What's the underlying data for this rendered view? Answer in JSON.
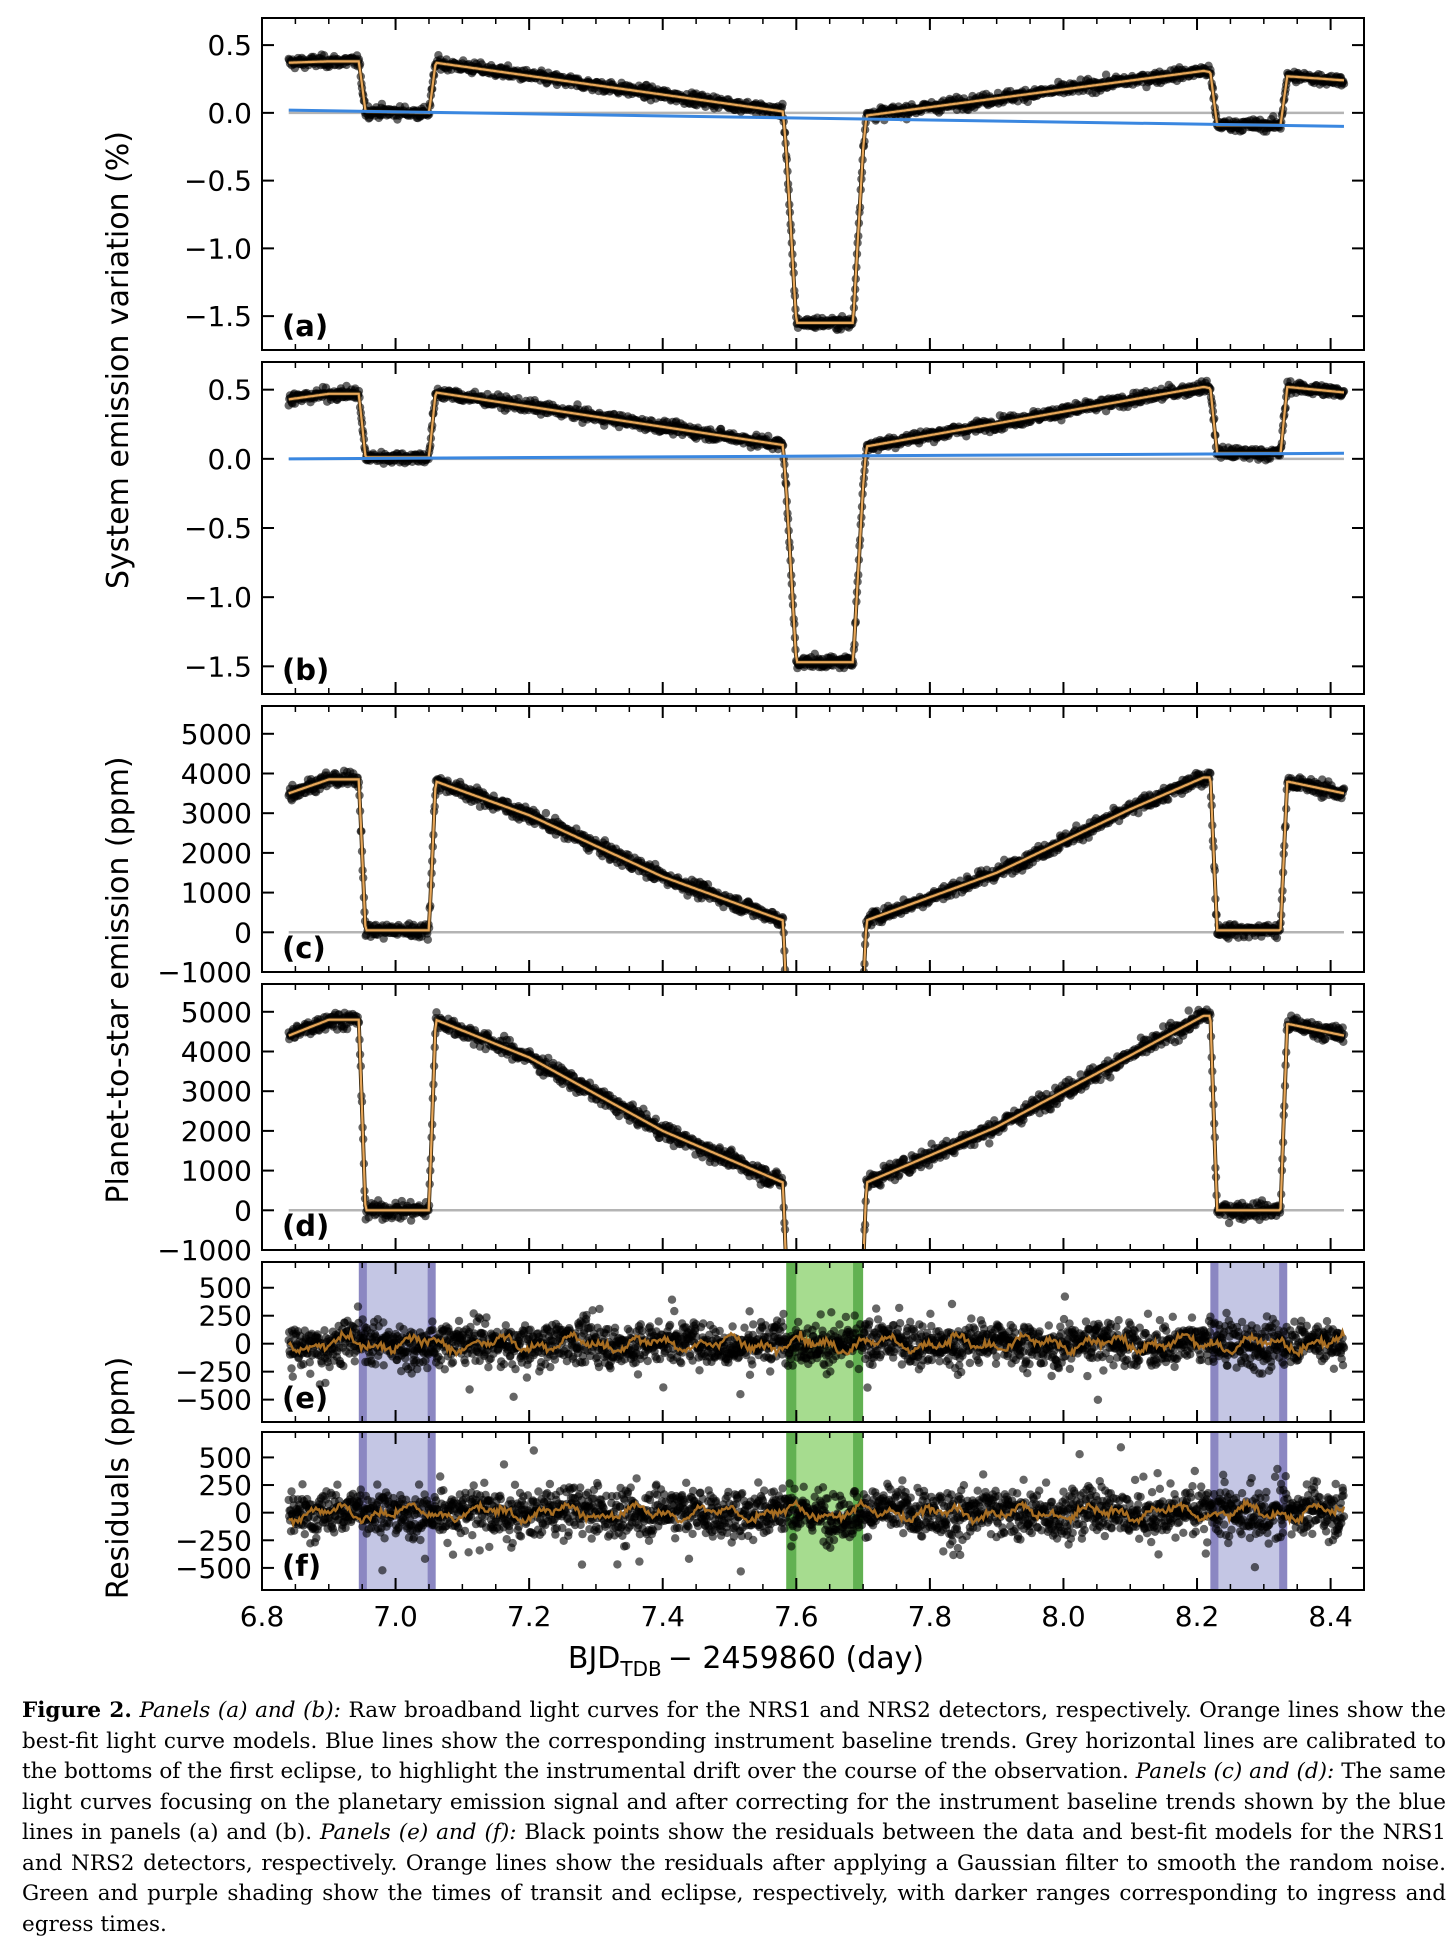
{
  "figure": {
    "xlabel_main": "BJD",
    "xlabel_sub": "TDB",
    "xlabel_rest": "− 2459860 (day)",
    "xlim": [
      6.8,
      8.45
    ],
    "xticks": [
      "6.8",
      "7.0",
      "7.2",
      "7.4",
      "7.6",
      "7.8",
      "8.0",
      "8.2",
      "8.4"
    ],
    "ylabel_top": "System emission variation (%)",
    "ylabel_mid": "Planet-to-star emission (ppm)",
    "ylabel_bottom": "Residuals (ppm)",
    "colors": {
      "data": "#000000",
      "model": "#e8a75a",
      "baseline": "#3a87e0",
      "grey_line": "#b4b4b4",
      "transit_shade": "#a6dc8f",
      "transit_edge": "#62b152",
      "eclipse_shade": "#c4c6e4",
      "eclipse_edge": "#8b87c2",
      "residual_smooth": "#a86e22"
    }
  },
  "chart_data": [
    {
      "type": "scatter",
      "panel_label": "(a)",
      "ylim": [
        -1.75,
        0.7
      ],
      "yticks": [
        "0.5",
        "0.0",
        "−0.5",
        "−1.0",
        "−1.5"
      ],
      "model_points": {
        "x": [
          6.84,
          6.9,
          6.945,
          6.955,
          7.05,
          7.06,
          7.58,
          7.585,
          7.6,
          7.685,
          7.7,
          7.705,
          8.21,
          8.22,
          8.23,
          8.325,
          8.335,
          8.42
        ],
        "y": [
          0.37,
          0.38,
          0.38,
          0.01,
          0.0,
          0.37,
          0.01,
          -0.28,
          -1.55,
          -1.55,
          -0.27,
          -0.02,
          0.31,
          0.3,
          -0.09,
          -0.09,
          0.27,
          0.24
        ]
      },
      "baseline": {
        "x": [
          6.84,
          8.42
        ],
        "y": [
          0.02,
          -0.1
        ]
      },
      "reference_line": 0.0,
      "scatter_noise": 0.03
    },
    {
      "type": "scatter",
      "panel_label": "(b)",
      "ylim": [
        -1.7,
        0.7
      ],
      "yticks": [
        "0.5",
        "0.0",
        "−0.5",
        "−1.0",
        "−1.5"
      ],
      "model_points": {
        "x": [
          6.84,
          6.9,
          6.945,
          6.955,
          7.05,
          7.06,
          7.58,
          7.585,
          7.6,
          7.685,
          7.7,
          7.705,
          8.21,
          8.22,
          8.23,
          8.325,
          8.335,
          8.42
        ],
        "y": [
          0.43,
          0.47,
          0.47,
          0.01,
          0.01,
          0.48,
          0.1,
          -0.22,
          -1.47,
          -1.47,
          -0.2,
          0.09,
          0.52,
          0.51,
          0.04,
          0.04,
          0.52,
          0.48
        ]
      },
      "baseline": {
        "x": [
          6.84,
          8.42
        ],
        "y": [
          0.0,
          0.04
        ]
      },
      "reference_line": 0.0,
      "scatter_noise": 0.03
    },
    {
      "type": "scatter",
      "panel_label": "(c)",
      "ylim": [
        -1000,
        5700
      ],
      "yticks": [
        "5000",
        "4000",
        "3000",
        "2000",
        "1000",
        "0",
        "−1000"
      ],
      "model_points": {
        "x": [
          6.84,
          6.9,
          6.945,
          6.955,
          7.05,
          7.06,
          7.2,
          7.4,
          7.58,
          7.585,
          7.7,
          7.705,
          7.9,
          8.1,
          8.21,
          8.22,
          8.23,
          8.325,
          8.335,
          8.42
        ],
        "y": [
          3500,
          3850,
          3850,
          50,
          50,
          3800,
          2950,
          1400,
          300,
          -1500,
          -1500,
          300,
          1500,
          3100,
          3900,
          3900,
          50,
          50,
          3800,
          3500
        ]
      },
      "reference_line": 0,
      "scatter_noise": 130
    },
    {
      "type": "scatter",
      "panel_label": "(d)",
      "ylim": [
        -1000,
        5700
      ],
      "yticks": [
        "5000",
        "4000",
        "3000",
        "2000",
        "1000",
        "0",
        "−1000"
      ],
      "model_points": {
        "x": [
          6.84,
          6.9,
          6.945,
          6.955,
          7.05,
          7.06,
          7.2,
          7.4,
          7.58,
          7.585,
          7.7,
          7.705,
          7.9,
          8.1,
          8.21,
          8.22,
          8.23,
          8.325,
          8.335,
          8.42
        ],
        "y": [
          4400,
          4800,
          4800,
          0,
          0,
          4800,
          3850,
          2000,
          700,
          -1500,
          -1500,
          700,
          2100,
          3900,
          4900,
          4900,
          0,
          0,
          4700,
          4400
        ]
      },
      "reference_line": 0,
      "scatter_noise": 150
    },
    {
      "type": "scatter",
      "panel_label": "(e)",
      "ylim": [
        -700,
        730
      ],
      "yticks": [
        "500",
        "250",
        "0",
        "−250",
        "−500"
      ],
      "transit": [
        7.585,
        7.7
      ],
      "transit_ingress": 0.015,
      "eclipses": [
        [
          6.945,
          7.06
        ],
        [
          8.22,
          8.335
        ]
      ],
      "eclipse_ingress": 0.012,
      "reference_line": 0,
      "scatter_noise": 130
    },
    {
      "type": "scatter",
      "panel_label": "(f)",
      "ylim": [
        -700,
        730
      ],
      "yticks": [
        "500",
        "250",
        "0",
        "−250",
        "−500"
      ],
      "transit": [
        7.585,
        7.7
      ],
      "transit_ingress": 0.015,
      "eclipses": [
        [
          6.945,
          7.06
        ],
        [
          8.22,
          8.335
        ]
      ],
      "eclipse_ingress": 0.012,
      "reference_line": 0,
      "scatter_noise": 150
    }
  ],
  "caption": {
    "label": "Figure 2.",
    "p1_ital": "Panels (a) and (b):",
    "p1_text": "Raw broadband light curves for the NRS1 and NRS2 detectors, respectively. Orange lines show the best-fit light curve models. Blue lines show the corresponding instrument baseline trends. Grey horizontal lines are calibrated to the bottoms of the first eclipse, to highlight the instrumental drift over the course of the observation.",
    "p2_ital": "Panels (c) and (d):",
    "p2_text": "The same light curves focusing on the planetary emission signal and after correcting for the instrument baseline trends shown by the blue lines in panels (a) and (b).",
    "p3_ital": "Panels (e) and (f):",
    "p3_text": "Black points show the residuals between the data and best-fit models for the NRS1 and NRS2 detectors, respectively. Orange lines show the residuals after applying a Gaussian filter to smooth the random noise. Green and purple shading show the times of transit and eclipse, respectively, with darker ranges corresponding to ingress and egress times."
  }
}
